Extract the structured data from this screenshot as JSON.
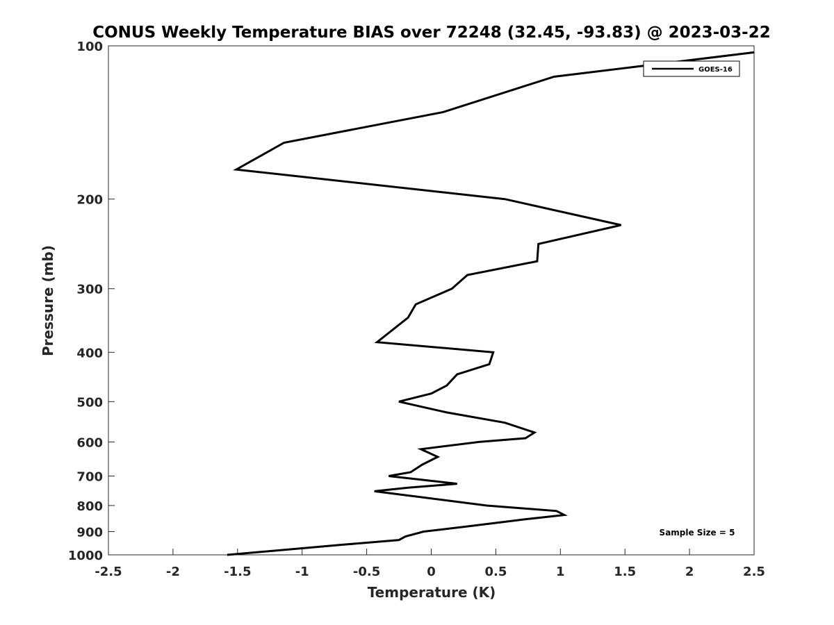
{
  "chart_data": {
    "type": "line",
    "title": "CONUS Weekly Temperature BIAS over 72248 (32.45, -93.83) @ 2023-03-22",
    "xlabel": "Temperature (K)",
    "ylabel": "Pressure (mb)",
    "xlim": [
      -2.5,
      2.5
    ],
    "ylim": [
      1000,
      100
    ],
    "yscale": "log",
    "y_reversed": true,
    "xticks": [
      "-2.5",
      "-2",
      "-1.5",
      "-1",
      "-0.5",
      "0",
      "0.5",
      "1",
      "1.5",
      "2",
      "2.5"
    ],
    "yticks": [
      "100",
      "200",
      "300",
      "400",
      "500",
      "600",
      "700",
      "800",
      "900",
      "1000"
    ],
    "grid": false,
    "legend_position": "top-right",
    "annotation": "Sample Size = 5",
    "line_color": "#000000",
    "series": [
      {
        "name": "GOES-16",
        "points": [
          {
            "x": 2.5,
            "p": 103
          },
          {
            "x": 0.95,
            "p": 115
          },
          {
            "x": 0.09,
            "p": 135
          },
          {
            "x": -1.14,
            "p": 155
          },
          {
            "x": -1.51,
            "p": 175
          },
          {
            "x": 0.57,
            "p": 200
          },
          {
            "x": 1.47,
            "p": 225
          },
          {
            "x": 0.83,
            "p": 245
          },
          {
            "x": 0.82,
            "p": 265
          },
          {
            "x": 0.28,
            "p": 282
          },
          {
            "x": 0.16,
            "p": 300
          },
          {
            "x": -0.12,
            "p": 322
          },
          {
            "x": -0.18,
            "p": 342
          },
          {
            "x": -0.42,
            "p": 382
          },
          {
            "x": 0.48,
            "p": 400
          },
          {
            "x": 0.45,
            "p": 422
          },
          {
            "x": 0.2,
            "p": 442
          },
          {
            "x": 0.12,
            "p": 465
          },
          {
            "x": 0.0,
            "p": 482
          },
          {
            "x": -0.25,
            "p": 500
          },
          {
            "x": 0.12,
            "p": 525
          },
          {
            "x": 0.57,
            "p": 550
          },
          {
            "x": 0.8,
            "p": 575
          },
          {
            "x": 0.73,
            "p": 590
          },
          {
            "x": 0.37,
            "p": 600
          },
          {
            "x": -0.08,
            "p": 620
          },
          {
            "x": 0.05,
            "p": 642
          },
          {
            "x": -0.07,
            "p": 665
          },
          {
            "x": -0.16,
            "p": 688
          },
          {
            "x": -0.33,
            "p": 700
          },
          {
            "x": 0.2,
            "p": 725
          },
          {
            "x": -0.18,
            "p": 738
          },
          {
            "x": -0.44,
            "p": 750
          },
          {
            "x": 0.43,
            "p": 800
          },
          {
            "x": 0.97,
            "p": 820
          },
          {
            "x": 1.03,
            "p": 835
          },
          {
            "x": 0.75,
            "p": 850
          },
          {
            "x": 0.27,
            "p": 880
          },
          {
            "x": -0.06,
            "p": 900
          },
          {
            "x": -0.2,
            "p": 920
          },
          {
            "x": -0.25,
            "p": 935
          },
          {
            "x": -0.68,
            "p": 955
          },
          {
            "x": -1.58,
            "p": 1000
          }
        ]
      }
    ]
  }
}
